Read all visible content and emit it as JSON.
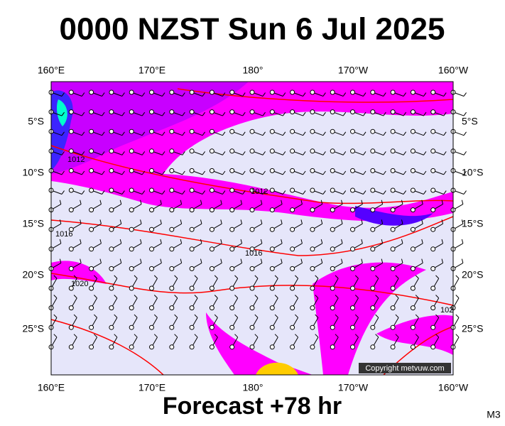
{
  "header": {
    "title": "0000 NZST Sun 6 Jul 2025"
  },
  "axis": {
    "top_labels": [
      "160°E",
      "170°E",
      "180°",
      "170°W",
      "160°W"
    ],
    "bottom_labels": [
      "160°E",
      "170°E",
      "180°",
      "170°W",
      "160°W"
    ],
    "left_labels": [
      "5°S",
      "10°S",
      "15°S",
      "20°S",
      "25°S"
    ],
    "right_labels": [
      "5°S",
      "10°S",
      "15°S",
      "20°S",
      "25°S"
    ]
  },
  "isobar_labels": [
    "1012",
    "1012",
    "1016",
    "1016",
    "1020",
    "102"
  ],
  "copyright": "Copyright metvuw.com",
  "footer": {
    "forecast": "Forecast +78 hr",
    "model": "M3"
  }
}
